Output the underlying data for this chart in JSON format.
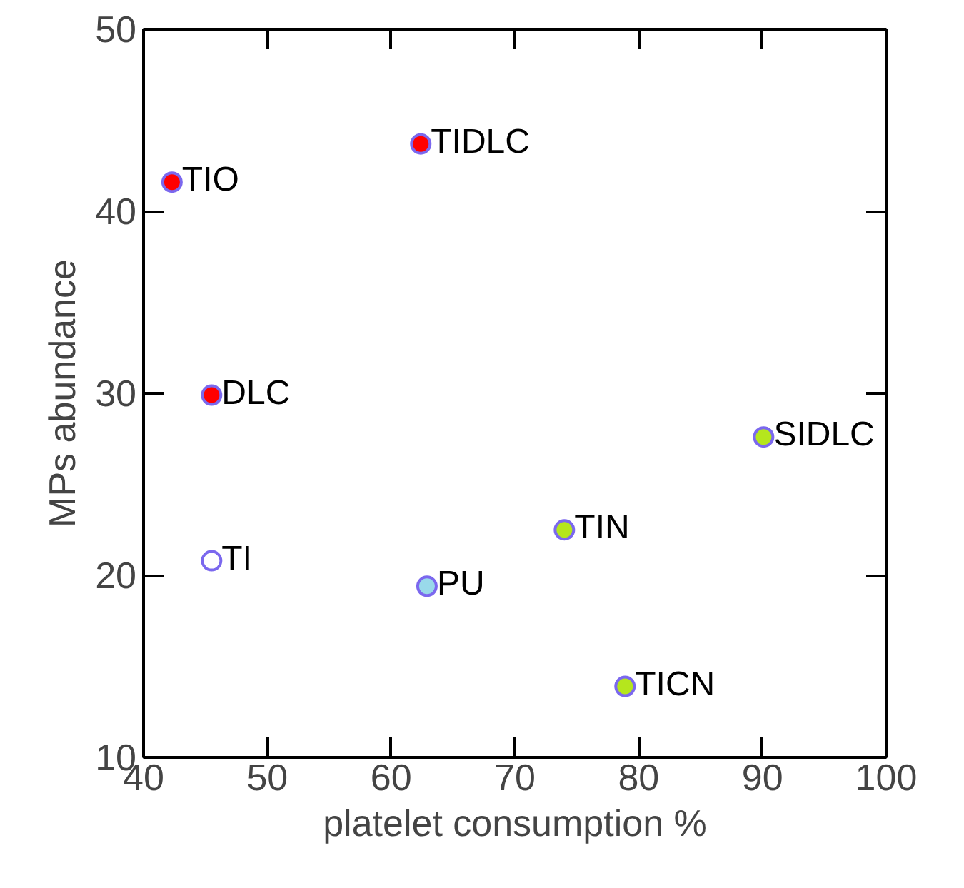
{
  "chart_data": {
    "type": "scatter",
    "xlabel": "platelet consumption %",
    "ylabel": "MPs abundance",
    "x": [
      42.3,
      62.4,
      45.5,
      45.5,
      62.9,
      74.0,
      90.1,
      78.9
    ],
    "values": [
      41.6,
      43.7,
      29.9,
      20.8,
      19.4,
      22.5,
      27.6,
      13.9
    ],
    "colors": [
      "#ff0000",
      "#ff0000",
      "#ff0000",
      "#ffffff",
      "#99d9ea",
      "#b5e61d",
      "#b5e61d",
      "#b5e61d"
    ],
    "annotations": [
      {
        "text": "TIO",
        "x": 42.3,
        "y": 41.6
      },
      {
        "text": "TIDLC",
        "x": 62.4,
        "y": 43.7
      },
      {
        "text": "DLC",
        "x": 45.5,
        "y": 29.9
      },
      {
        "text": "TI",
        "x": 45.5,
        "y": 20.8
      },
      {
        "text": "PU",
        "x": 62.9,
        "y": 19.4
      },
      {
        "text": "TIN",
        "x": 74.0,
        "y": 22.5
      },
      {
        "text": "SIDLC",
        "x": 90.1,
        "y": 27.6
      },
      {
        "text": "TICN",
        "x": 78.9,
        "y": 13.9
      }
    ],
    "marker": "circle",
    "xlim": [
      40,
      100
    ],
    "ylim": [
      10,
      50
    ],
    "xticks": [
      40,
      50,
      60,
      70,
      80,
      90,
      100
    ],
    "yticks": [
      10,
      20,
      30,
      40,
      50
    ],
    "grid": false
  }
}
